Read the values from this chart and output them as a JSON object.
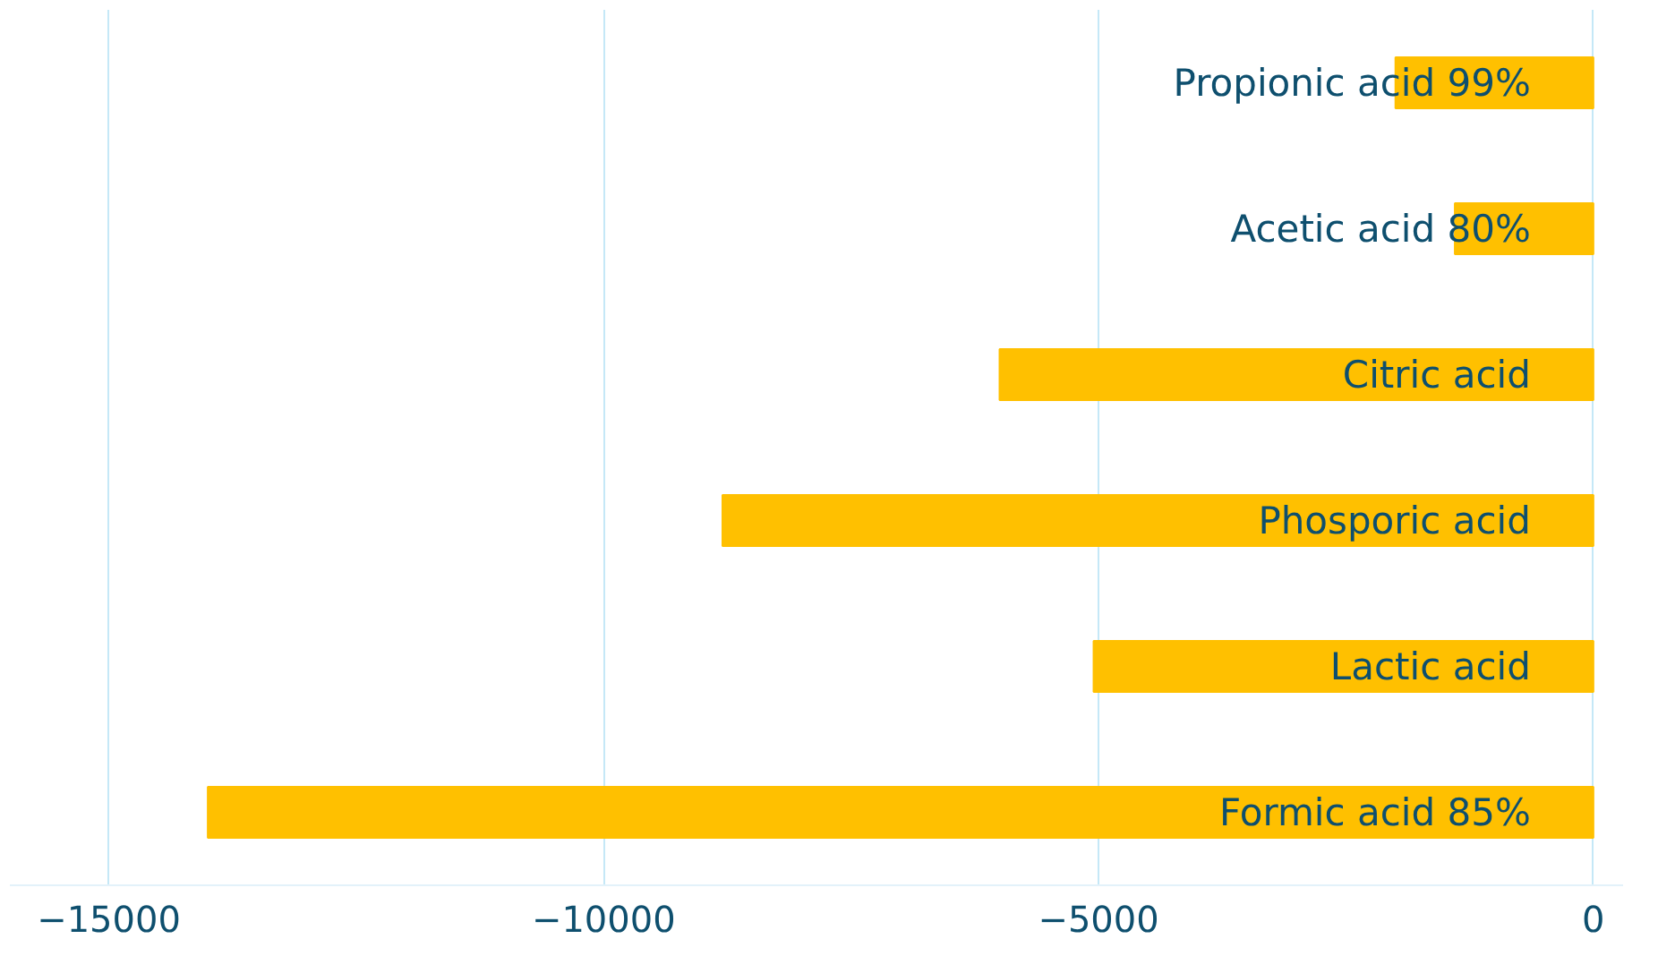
{
  "chart_data": {
    "type": "bar",
    "orientation": "horizontal",
    "categories": [
      "Propionic acid 99%",
      "Acetic acid 80%",
      "Citric acid",
      "Phosporic acid",
      "Lactic acid",
      "Formic acid 85%"
    ],
    "values": [
      -2000,
      -1400,
      -6000,
      -8800,
      -5050,
      -14000
    ],
    "color": "#ffc000",
    "xlim": [
      -16000,
      300
    ],
    "xticks": [
      -15000,
      -10000,
      -5000,
      0
    ],
    "grid": "x"
  }
}
